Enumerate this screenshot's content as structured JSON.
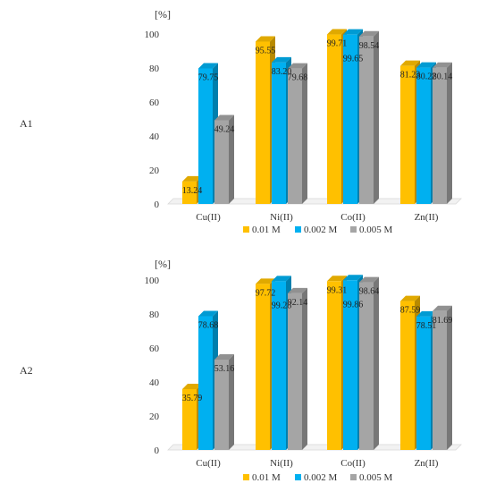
{
  "colors": {
    "s1": "#FFC000",
    "s2": "#00B0F0",
    "s3": "#A5A5A5"
  },
  "chart_data": [
    {
      "type": "bar",
      "panel_label": "A1",
      "unit_label": "[%]",
      "categories": [
        "Cu(II)",
        "Ni(II)",
        "Co(II)",
        "Zn(II)"
      ],
      "series": [
        {
          "name": "0.01 M",
          "values": [
            13.24,
            95.55,
            99.71,
            81.23
          ],
          "labels": [
            "13.24",
            "95.55",
            "99.71",
            "81.23"
          ]
        },
        {
          "name": "0.002 M",
          "values": [
            79.75,
            83.2,
            99.65,
            80.22
          ],
          "labels": [
            "79.75",
            "83.20",
            "99.65",
            "80.22"
          ]
        },
        {
          "name": "0.005 M",
          "values": [
            49.24,
            79.68,
            98.54,
            80.14
          ],
          "labels": [
            "49.24",
            "79.68",
            "98.54",
            "80.14"
          ]
        }
      ],
      "yticks": [
        "0",
        "20",
        "40",
        "60",
        "80",
        "100"
      ],
      "ylim": [
        0,
        100
      ],
      "grid": false,
      "legend": "bottom"
    },
    {
      "type": "bar",
      "panel_label": "A2",
      "unit_label": "[%]",
      "categories": [
        "Cu(II)",
        "Ni(II)",
        "Co(II)",
        "Zn(II)"
      ],
      "series": [
        {
          "name": "0.01 M",
          "values": [
            35.79,
            97.72,
            99.31,
            87.59
          ],
          "labels": [
            "35.79",
            "97.72",
            "99.31",
            "87.59"
          ]
        },
        {
          "name": "0.002 M",
          "values": [
            78.68,
            99.28,
            99.86,
            78.51
          ],
          "labels": [
            "78.68",
            "99.28",
            "99.86",
            "78.51"
          ]
        },
        {
          "name": "0.005 M",
          "values": [
            53.16,
            92.14,
            98.64,
            81.69
          ],
          "labels": [
            "53.16",
            "92.14",
            "98.64",
            "81.69"
          ]
        }
      ],
      "yticks": [
        "0",
        "20",
        "40",
        "60",
        "80",
        "100"
      ],
      "ylim": [
        0,
        100
      ],
      "grid": false,
      "legend": "bottom"
    }
  ]
}
